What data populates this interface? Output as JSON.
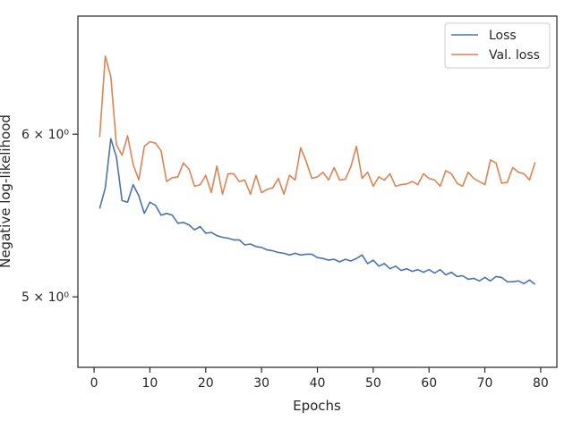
{
  "chart_data": {
    "type": "line",
    "xlabel": "Epochs",
    "ylabel": "Negative log-likelihood",
    "yscale": "log",
    "xlim": [
      -2.9,
      82.9
    ],
    "ylim": [
      4.62,
      6.85
    ],
    "xticks": [
      0,
      10,
      20,
      30,
      40,
      50,
      60,
      70,
      80
    ],
    "xtick_labels": [
      "0",
      "10",
      "20",
      "30",
      "40",
      "50",
      "60",
      "70",
      "80"
    ],
    "yticks": [
      5,
      6
    ],
    "ytick_labels": [
      "5 × 10⁰",
      "6 × 10⁰"
    ],
    "grid": false,
    "legend_position": "top-right",
    "x": [
      1,
      2,
      3,
      4,
      5,
      6,
      7,
      8,
      9,
      10,
      11,
      12,
      13,
      14,
      15,
      16,
      17,
      18,
      19,
      20,
      21,
      22,
      23,
      24,
      25,
      26,
      27,
      28,
      29,
      30,
      31,
      32,
      33,
      34,
      35,
      36,
      37,
      38,
      39,
      40,
      41,
      42,
      43,
      44,
      45,
      46,
      47,
      48,
      49,
      50,
      51,
      52,
      53,
      54,
      55,
      56,
      57,
      58,
      59,
      60,
      61,
      62,
      63,
      64,
      65,
      66,
      67,
      68,
      69,
      70,
      71,
      72,
      73,
      74,
      75,
      76,
      77,
      78,
      79
    ],
    "series": [
      {
        "name": "Loss",
        "color": "#4c72b0",
        "values": [
          5.52,
          5.65,
          5.97,
          5.85,
          5.57,
          5.56,
          5.67,
          5.6,
          5.49,
          5.56,
          5.54,
          5.48,
          5.49,
          5.48,
          5.43,
          5.435,
          5.42,
          5.39,
          5.41,
          5.37,
          5.375,
          5.355,
          5.345,
          5.34,
          5.33,
          5.33,
          5.3,
          5.305,
          5.29,
          5.285,
          5.27,
          5.265,
          5.255,
          5.25,
          5.24,
          5.25,
          5.24,
          5.245,
          5.245,
          5.225,
          5.22,
          5.21,
          5.215,
          5.2,
          5.215,
          5.205,
          5.22,
          5.24,
          5.19,
          5.21,
          5.175,
          5.19,
          5.16,
          5.175,
          5.15,
          5.16,
          5.145,
          5.155,
          5.14,
          5.155,
          5.135,
          5.155,
          5.125,
          5.14,
          5.115,
          5.12,
          5.1,
          5.105,
          5.09,
          5.11,
          5.09,
          5.115,
          5.11,
          5.085,
          5.085,
          5.09,
          5.075,
          5.095,
          5.07
        ]
      },
      {
        "name": "Val. loss",
        "color": "#dd8452",
        "values": [
          5.98,
          6.55,
          6.4,
          5.93,
          5.86,
          5.99,
          5.8,
          5.7,
          5.92,
          5.95,
          5.94,
          5.89,
          5.69,
          5.715,
          5.72,
          5.81,
          5.77,
          5.66,
          5.67,
          5.73,
          5.62,
          5.79,
          5.61,
          5.74,
          5.74,
          5.69,
          5.7,
          5.61,
          5.73,
          5.62,
          5.64,
          5.65,
          5.71,
          5.61,
          5.73,
          5.7,
          5.91,
          5.82,
          5.71,
          5.72,
          5.75,
          5.7,
          5.78,
          5.7,
          5.705,
          5.785,
          5.92,
          5.71,
          5.75,
          5.66,
          5.72,
          5.7,
          5.74,
          5.66,
          5.67,
          5.675,
          5.69,
          5.67,
          5.74,
          5.71,
          5.7,
          5.66,
          5.76,
          5.74,
          5.68,
          5.66,
          5.75,
          5.71,
          5.69,
          5.67,
          5.83,
          5.81,
          5.68,
          5.685,
          5.78,
          5.75,
          5.74,
          5.7,
          5.815
        ]
      }
    ]
  }
}
